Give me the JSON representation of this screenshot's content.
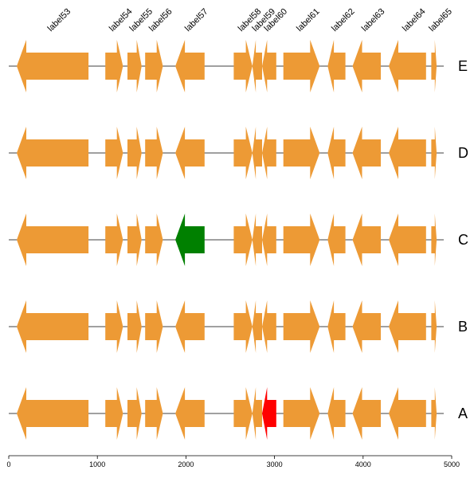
{
  "chart_data": {
    "type": "gene-map",
    "xlim": [
      0,
      5000
    ],
    "x_ticks": [
      "0",
      "1000",
      "2000",
      "3000",
      "4000",
      "5000"
    ],
    "x_tick_values": [
      0,
      1000,
      2000,
      3000,
      4000,
      5000
    ],
    "default_color": "#ed9a35",
    "genes": [
      {
        "label": "label53",
        "start": 90,
        "end": 900,
        "strand": -1
      },
      {
        "label": "label54",
        "start": 1090,
        "end": 1290,
        "strand": 1
      },
      {
        "label": "label55",
        "start": 1340,
        "end": 1500,
        "strand": 1
      },
      {
        "label": "label56",
        "start": 1540,
        "end": 1740,
        "strand": 1
      },
      {
        "label": "label57",
        "start": 1880,
        "end": 2210,
        "strand": -1
      },
      {
        "label": "label58",
        "start": 2540,
        "end": 2750,
        "strand": 1
      },
      {
        "label": "label59",
        "start": 2750,
        "end": 2860,
        "strand": -1
      },
      {
        "label": "label60",
        "start": 2860,
        "end": 3020,
        "strand": -1
      },
      {
        "label": "label61",
        "start": 3100,
        "end": 3510,
        "strand": 1
      },
      {
        "label": "label62",
        "start": 3600,
        "end": 3800,
        "strand": -1
      },
      {
        "label": "label63",
        "start": 3880,
        "end": 4200,
        "strand": -1
      },
      {
        "label": "label64",
        "start": 4290,
        "end": 4710,
        "strand": -1
      },
      {
        "label": "label65",
        "start": 4770,
        "end": 4830,
        "strand": 1
      }
    ],
    "tracks": [
      {
        "name": "E",
        "highlights": []
      },
      {
        "name": "D",
        "highlights": []
      },
      {
        "name": "C",
        "highlights": [
          {
            "gene": "label57",
            "color": "#008000"
          }
        ]
      },
      {
        "name": "B",
        "highlights": []
      },
      {
        "name": "A",
        "highlights": [
          {
            "gene": "label60",
            "color": "#ff0000"
          }
        ]
      }
    ]
  }
}
